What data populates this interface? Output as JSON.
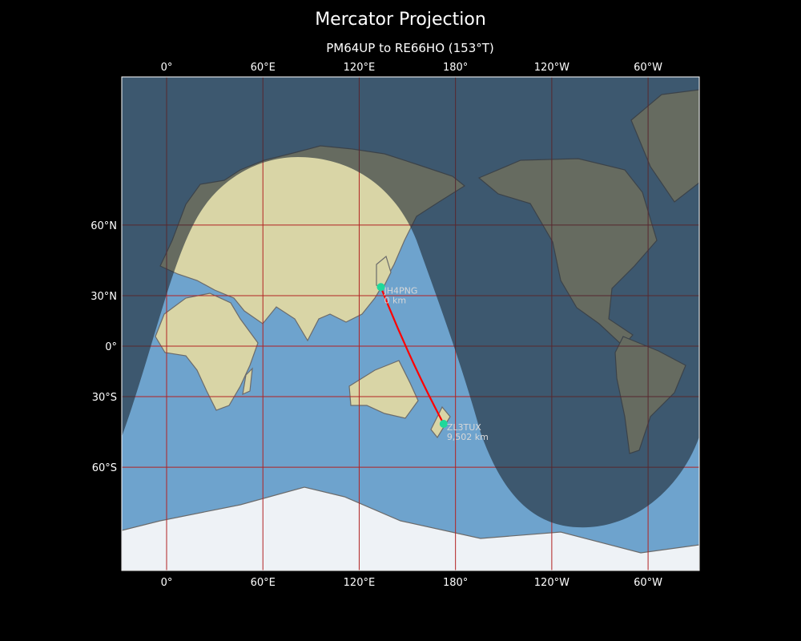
{
  "title": "Mercator Projection",
  "subtitle": "PM64UP to RE66HO (153°T)",
  "lon_ticks": [
    "0°",
    "60°E",
    "120°E",
    "180°",
    "120°W",
    "60°W"
  ],
  "lat_ticks": [
    "60°N",
    "30°N",
    "0°",
    "30°S",
    "60°S"
  ],
  "stations": [
    {
      "call": "JH4PNG",
      "distance": "0 km",
      "lat": 34.5,
      "lon": 133.5
    },
    {
      "call": "ZL3TUX",
      "distance": "9,502 km",
      "lat": -43.5,
      "lon": 172.6
    }
  ],
  "colors": {
    "route": "#ff0000",
    "marker": "#1fd89a",
    "grid": "#b22222",
    "night": "#1e2a36"
  }
}
